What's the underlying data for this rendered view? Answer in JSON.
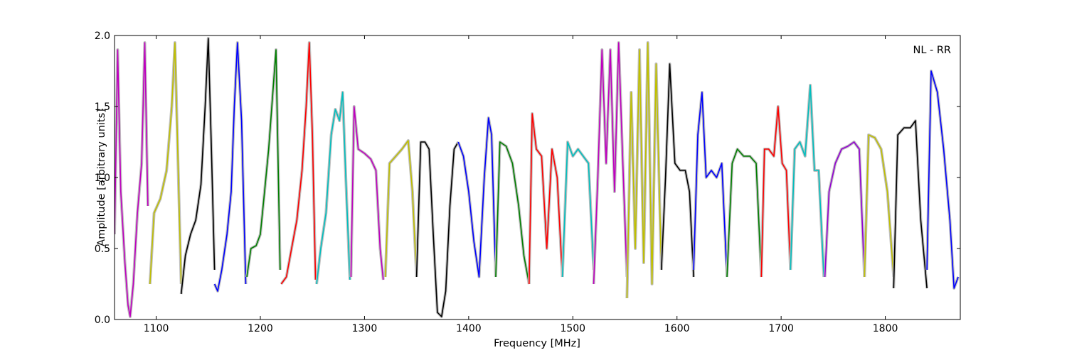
{
  "chart_data": {
    "type": "line",
    "xlabel": "Frequency [MHz]",
    "ylabel": "Amplitude [arbitrary units]",
    "annotation": "NL - RR",
    "xlim": [
      1060,
      1872
    ],
    "ylim": [
      0.0,
      2.0
    ],
    "xticks": [
      1100,
      1200,
      1300,
      1400,
      1500,
      1600,
      1700,
      1800
    ],
    "xtick_labels": [
      "1100",
      "1200",
      "1300",
      "1400",
      "1500",
      "1600",
      "1700",
      "1800"
    ],
    "yticks": [
      0.0,
      0.5,
      1.0,
      1.5,
      2.0
    ],
    "ytick_labels": [
      "0.0",
      "0.5",
      "1.0",
      "1.5",
      "2.0"
    ],
    "grid": false,
    "background_series_color": "#bfbfbf",
    "colors": {
      "magenta": "#bf00bf",
      "olive": "#bfbf00",
      "black": "#000000",
      "red": "#ff0000",
      "blue": "#0000ff",
      "green": "#007f00",
      "cyan": "#00bfbf",
      "purple": "#9400d3"
    },
    "bands": [
      {
        "color": "#bf00bf",
        "x": [
          1060,
          1063,
          1066,
          1070,
          1073,
          1075,
          1078,
          1082,
          1086,
          1089,
          1092
        ],
        "y": [
          0.6,
          1.9,
          0.9,
          0.4,
          0.1,
          0.02,
          0.25,
          0.75,
          1.1,
          1.95,
          0.8
        ]
      },
      {
        "color": "#bfbf00",
        "x": [
          1094,
          1098,
          1104,
          1110,
          1115,
          1118,
          1121,
          1124
        ],
        "y": [
          0.25,
          0.75,
          0.85,
          1.05,
          1.5,
          1.95,
          1.1,
          0.25
        ]
      },
      {
        "color": "#000000",
        "x": [
          1124,
          1128,
          1133,
          1138,
          1143,
          1147,
          1150,
          1153,
          1156
        ],
        "y": [
          0.18,
          0.45,
          0.6,
          0.7,
          0.95,
          1.5,
          1.98,
          1.2,
          0.35
        ]
      },
      {
        "color": "#0000ff",
        "x": [
          1156,
          1159,
          1163,
          1168,
          1172,
          1175,
          1178,
          1182,
          1186
        ],
        "y": [
          0.25,
          0.2,
          0.35,
          0.6,
          0.9,
          1.5,
          1.95,
          1.4,
          0.25
        ]
      },
      {
        "color": "#007f00",
        "x": [
          1187,
          1191,
          1196,
          1200,
          1204,
          1208,
          1212,
          1215,
          1219
        ],
        "y": [
          0.3,
          0.5,
          0.52,
          0.6,
          0.9,
          1.2,
          1.6,
          1.9,
          0.35
        ]
      },
      {
        "color": "#ff0000",
        "x": [
          1220,
          1225,
          1230,
          1235,
          1240,
          1244,
          1247,
          1250,
          1253
        ],
        "y": [
          0.25,
          0.3,
          0.5,
          0.7,
          1.05,
          1.5,
          1.95,
          1.3,
          0.28
        ]
      },
      {
        "color": "#00bfbf",
        "x": [
          1254,
          1258,
          1263,
          1268,
          1272,
          1276,
          1279,
          1282,
          1286
        ],
        "y": [
          0.25,
          0.5,
          0.75,
          1.3,
          1.48,
          1.4,
          1.6,
          1.0,
          0.28
        ]
      },
      {
        "color": "#bf00bf",
        "x": [
          1287,
          1290,
          1294,
          1300,
          1306,
          1311,
          1315,
          1318
        ],
        "y": [
          0.3,
          1.5,
          1.2,
          1.17,
          1.13,
          1.05,
          0.5,
          0.28
        ]
      },
      {
        "color": "#bfbf00",
        "x": [
          1320,
          1324,
          1330,
          1336,
          1342,
          1346,
          1350
        ],
        "y": [
          0.3,
          1.1,
          1.15,
          1.2,
          1.26,
          0.9,
          0.3
        ]
      },
      {
        "color": "#000000",
        "x": [
          1350,
          1354,
          1358,
          1362,
          1366,
          1370,
          1374,
          1378,
          1382,
          1386,
          1390
        ],
        "y": [
          0.3,
          1.25,
          1.25,
          1.2,
          0.6,
          0.05,
          0.02,
          0.2,
          0.8,
          1.2,
          1.25
        ]
      },
      {
        "color": "#0000ff",
        "x": [
          1390,
          1395,
          1400,
          1405,
          1410,
          1415,
          1419,
          1422,
          1426
        ],
        "y": [
          1.25,
          1.15,
          0.9,
          0.55,
          0.3,
          1.0,
          1.42,
          1.3,
          0.3
        ]
      },
      {
        "color": "#007f00",
        "x": [
          1426,
          1430,
          1436,
          1442,
          1448,
          1453,
          1458
        ],
        "y": [
          0.3,
          1.25,
          1.22,
          1.1,
          0.8,
          0.45,
          0.25
        ]
      },
      {
        "color": "#ff0000",
        "x": [
          1458,
          1461,
          1465,
          1470,
          1475,
          1480,
          1485,
          1490
        ],
        "y": [
          0.25,
          1.45,
          1.2,
          1.15,
          0.5,
          1.2,
          1.0,
          0.3
        ]
      },
      {
        "color": "#00bfbf",
        "x": [
          1490,
          1495,
          1500,
          1505,
          1510,
          1515,
          1520
        ],
        "y": [
          0.3,
          1.25,
          1.15,
          1.2,
          1.15,
          1.1,
          0.35
        ]
      },
      {
        "color": "#bf00bf",
        "x": [
          1520,
          1524,
          1528,
          1532,
          1536,
          1540,
          1544,
          1548,
          1552
        ],
        "y": [
          0.25,
          1.0,
          1.9,
          1.1,
          1.9,
          0.9,
          1.95,
          1.1,
          0.3
        ]
      },
      {
        "color": "#bfbf00",
        "x": [
          1552,
          1556,
          1560,
          1564,
          1568,
          1572,
          1576,
          1580,
          1585
        ],
        "y": [
          0.15,
          1.6,
          0.5,
          1.9,
          0.4,
          1.95,
          0.25,
          1.8,
          0.35
        ]
      },
      {
        "color": "#000000",
        "x": [
          1585,
          1589,
          1593,
          1598,
          1603,
          1608,
          1612,
          1616
        ],
        "y": [
          0.35,
          1.0,
          1.8,
          1.1,
          1.05,
          1.05,
          0.9,
          0.3
        ]
      },
      {
        "color": "#0000ff",
        "x": [
          1616,
          1620,
          1624,
          1628,
          1633,
          1638,
          1643,
          1648
        ],
        "y": [
          0.35,
          1.3,
          1.6,
          1.0,
          1.05,
          1.0,
          1.1,
          0.3
        ]
      },
      {
        "color": "#007f00",
        "x": [
          1648,
          1653,
          1658,
          1664,
          1670,
          1676,
          1681
        ],
        "y": [
          0.3,
          1.1,
          1.2,
          1.15,
          1.15,
          1.1,
          0.3
        ]
      },
      {
        "color": "#ff0000",
        "x": [
          1681,
          1684,
          1688,
          1693,
          1697,
          1701,
          1705,
          1709
        ],
        "y": [
          0.3,
          1.2,
          1.2,
          1.15,
          1.5,
          1.1,
          1.05,
          0.35
        ]
      },
      {
        "color": "#00bfbf",
        "x": [
          1709,
          1713,
          1718,
          1723,
          1728,
          1732,
          1736,
          1741
        ],
        "y": [
          0.35,
          1.2,
          1.25,
          1.15,
          1.65,
          1.05,
          1.05,
          0.3
        ]
      },
      {
        "color": "#9400d3",
        "x": [
          1742,
          1746,
          1752,
          1758,
          1764,
          1770,
          1775,
          1780
        ],
        "y": [
          0.3,
          0.9,
          1.1,
          1.2,
          1.22,
          1.25,
          1.2,
          0.3
        ]
      },
      {
        "color": "#bfbf00",
        "x": [
          1780,
          1784,
          1790,
          1796,
          1802,
          1808
        ],
        "y": [
          0.3,
          1.3,
          1.28,
          1.2,
          0.9,
          0.3
        ]
      },
      {
        "color": "#000000",
        "x": [
          1808,
          1812,
          1818,
          1824,
          1829,
          1834,
          1840
        ],
        "y": [
          0.22,
          1.3,
          1.35,
          1.35,
          1.4,
          0.7,
          0.22
        ]
      },
      {
        "color": "#0000ff",
        "x": [
          1840,
          1844,
          1850,
          1856,
          1862,
          1866,
          1870
        ],
        "y": [
          0.35,
          1.75,
          1.6,
          1.2,
          0.7,
          0.22,
          0.3
        ]
      }
    ]
  }
}
